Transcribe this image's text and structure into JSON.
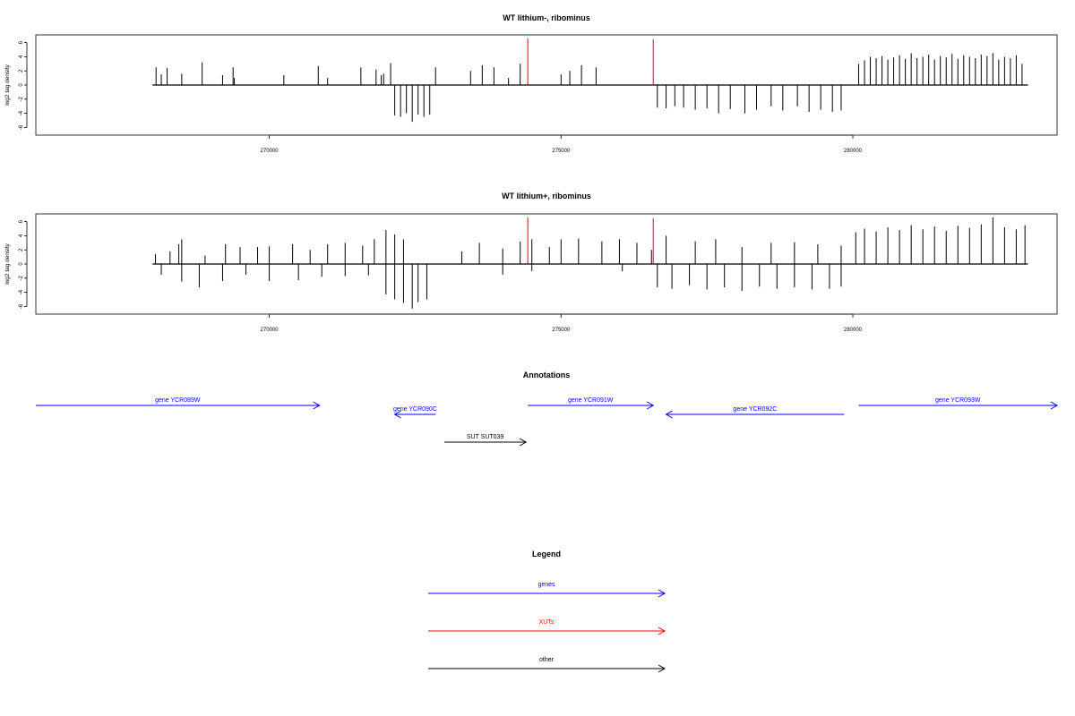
{
  "chart_data": [
    {
      "type": "bar",
      "title": "WT lithium-, ribominus",
      "ylabel": "log2 tag density",
      "xlim": [
        266000,
        283500
      ],
      "ylim": [
        -7,
        7
      ],
      "x_ticks": [
        270000,
        275000,
        280000
      ],
      "x_tick_labels": [
        "270000",
        "275000",
        "280000"
      ],
      "y_ticks": [
        -6,
        -4,
        -2,
        0,
        2,
        4,
        6
      ],
      "y_tick_labels": [
        "-6",
        "-4",
        "-2",
        "0",
        "2",
        "4",
        "6"
      ],
      "baseline": {
        "x": [
          268000,
          283000
        ],
        "y": 0
      },
      "series": [
        {
          "strand": "plus",
          "color": "#000000",
          "points": [
            [
              268060,
              2.5
            ],
            [
              268150,
              1.5
            ],
            [
              268250,
              2.4
            ],
            [
              268500,
              1.6
            ],
            [
              268850,
              3.2
            ],
            [
              269200,
              1.4
            ],
            [
              269380,
              2.5
            ],
            [
              269400,
              1.0
            ],
            [
              270250,
              1.4
            ],
            [
              270840,
              2.7
            ],
            [
              271000,
              1.0
            ],
            [
              271570,
              2.5
            ],
            [
              271830,
              2.2
            ],
            [
              271920,
              1.4
            ],
            [
              271960,
              1.6
            ],
            [
              272080,
              3.1
            ],
            [
              272850,
              2.5
            ],
            [
              273450,
              2.0
            ],
            [
              273650,
              2.8
            ],
            [
              273850,
              2.5
            ],
            [
              274100,
              1.0
            ],
            [
              274300,
              3.0
            ],
            [
              275000,
              1.5
            ],
            [
              275150,
              2.0
            ],
            [
              275350,
              2.8
            ],
            [
              275600,
              2.5
            ],
            [
              280100,
              3.0
            ],
            [
              280200,
              3.5
            ],
            [
              280300,
              4.0
            ],
            [
              280400,
              3.8
            ],
            [
              280500,
              4.1
            ],
            [
              280600,
              3.6
            ],
            [
              280700,
              3.9
            ],
            [
              280800,
              4.2
            ],
            [
              280900,
              3.7
            ],
            [
              281000,
              4.5
            ],
            [
              281100,
              3.8
            ],
            [
              281200,
              4.0
            ],
            [
              281300,
              4.3
            ],
            [
              281400,
              3.6
            ],
            [
              281500,
              4.1
            ],
            [
              281600,
              3.9
            ],
            [
              281700,
              4.4
            ],
            [
              281800,
              3.7
            ],
            [
              281900,
              4.2
            ],
            [
              282000,
              4.0
            ],
            [
              282100,
              3.8
            ],
            [
              282200,
              4.3
            ],
            [
              282300,
              4.1
            ],
            [
              282400,
              4.5
            ],
            [
              282500,
              3.6
            ],
            [
              282600,
              4.0
            ],
            [
              282700,
              3.8
            ],
            [
              282800,
              4.2
            ],
            [
              282900,
              3.0
            ]
          ]
        },
        {
          "strand": "minus",
          "color": "#000000",
          "points": [
            [
              272150,
              -4.3
            ],
            [
              272250,
              -4.5
            ],
            [
              272350,
              -4.0
            ],
            [
              272450,
              -5.2
            ],
            [
              272550,
              -4.2
            ],
            [
              272650,
              -4.5
            ],
            [
              272750,
              -4.2
            ],
            [
              276650,
              -3.2
            ],
            [
              276800,
              -3.3
            ],
            [
              276950,
              -3.0
            ],
            [
              277100,
              -3.2
            ],
            [
              277300,
              -3.5
            ],
            [
              277500,
              -3.3
            ],
            [
              277700,
              -4.0
            ],
            [
              277900,
              -3.4
            ],
            [
              278150,
              -4.0
            ],
            [
              278350,
              -3.5
            ],
            [
              278600,
              -3.0
            ],
            [
              278800,
              -3.6
            ],
            [
              279050,
              -3.0
            ],
            [
              279250,
              -3.8
            ],
            [
              279450,
              -3.5
            ],
            [
              279650,
              -3.8
            ],
            [
              279800,
              -3.6
            ]
          ]
        },
        {
          "strand": "xut",
          "color": "#ff0000",
          "points": [
            [
              274430,
              6.6
            ],
            [
              276580,
              6.5
            ]
          ]
        }
      ]
    },
    {
      "type": "bar",
      "title": "WT lithium+, ribominus",
      "ylabel": "log2 tag density",
      "xlim": [
        266000,
        283500
      ],
      "ylim": [
        -7,
        7
      ],
      "x_ticks": [
        270000,
        275000,
        280000
      ],
      "x_tick_labels": [
        "270000",
        "275000",
        "280000"
      ],
      "y_ticks": [
        -6,
        -4,
        -2,
        0,
        2,
        4,
        6
      ],
      "y_tick_labels": [
        "-6",
        "-4",
        "-2",
        "0",
        "2",
        "4",
        "6"
      ],
      "baseline": {
        "x": [
          268000,
          283000
        ],
        "y": 0
      },
      "series": [
        {
          "strand": "plus",
          "color": "#000000",
          "points": [
            [
              268050,
              1.4
            ],
            [
              268300,
              1.8
            ],
            [
              268450,
              2.8
            ],
            [
              268500,
              3.5
            ],
            [
              268900,
              1.2
            ],
            [
              269250,
              2.8
            ],
            [
              269500,
              2.4
            ],
            [
              269800,
              2.4
            ],
            [
              270000,
              2.5
            ],
            [
              270400,
              2.8
            ],
            [
              270700,
              2.0
            ],
            [
              271000,
              2.8
            ],
            [
              271300,
              3.0
            ],
            [
              271600,
              2.6
            ],
            [
              271800,
              3.5
            ],
            [
              272000,
              4.8
            ],
            [
              272150,
              4.2
            ],
            [
              272300,
              3.5
            ],
            [
              273300,
              1.8
            ],
            [
              273600,
              3.0
            ],
            [
              274000,
              2.2
            ],
            [
              274300,
              3.2
            ],
            [
              274500,
              3.5
            ],
            [
              274800,
              2.4
            ],
            [
              275000,
              3.5
            ],
            [
              275300,
              3.6
            ],
            [
              275700,
              3.2
            ],
            [
              276000,
              3.5
            ],
            [
              276300,
              3.0
            ],
            [
              276550,
              2.0
            ],
            [
              276800,
              4.0
            ],
            [
              277300,
              3.2
            ],
            [
              277650,
              3.5
            ],
            [
              278100,
              2.4
            ],
            [
              278600,
              3.0
            ],
            [
              279000,
              3.1
            ],
            [
              279400,
              2.8
            ],
            [
              279800,
              2.6
            ],
            [
              280050,
              4.5
            ],
            [
              280200,
              5.0
            ],
            [
              280400,
              4.6
            ],
            [
              280600,
              5.2
            ],
            [
              280800,
              4.8
            ],
            [
              281000,
              5.5
            ],
            [
              281200,
              4.9
            ],
            [
              281400,
              5.3
            ],
            [
              281600,
              4.7
            ],
            [
              281800,
              5.4
            ],
            [
              282000,
              5.1
            ],
            [
              282200,
              5.6
            ],
            [
              282400,
              6.6
            ],
            [
              282600,
              5.2
            ],
            [
              282800,
              4.9
            ],
            [
              282950,
              5.5
            ]
          ]
        },
        {
          "strand": "minus",
          "color": "#000000",
          "points": [
            [
              268150,
              -1.5
            ],
            [
              268500,
              -2.5
            ],
            [
              268800,
              -3.3
            ],
            [
              269200,
              -2.4
            ],
            [
              269600,
              -1.5
            ],
            [
              270000,
              -2.4
            ],
            [
              270500,
              -2.3
            ],
            [
              270900,
              -1.8
            ],
            [
              271300,
              -1.7
            ],
            [
              271700,
              -1.6
            ],
            [
              272000,
              -4.3
            ],
            [
              272150,
              -5.0
            ],
            [
              272300,
              -5.5
            ],
            [
              272450,
              -6.3
            ],
            [
              272550,
              -5.4
            ],
            [
              272700,
              -5.0
            ],
            [
              274000,
              -1.5
            ],
            [
              274500,
              -1.0
            ],
            [
              276050,
              -1.0
            ],
            [
              276650,
              -3.3
            ],
            [
              276900,
              -3.5
            ],
            [
              277200,
              -3.0
            ],
            [
              277500,
              -3.6
            ],
            [
              277800,
              -3.3
            ],
            [
              278100,
              -3.8
            ],
            [
              278400,
              -3.2
            ],
            [
              278700,
              -3.5
            ],
            [
              279000,
              -3.3
            ],
            [
              279300,
              -3.6
            ],
            [
              279600,
              -3.5
            ],
            [
              279800,
              -3.2
            ]
          ]
        },
        {
          "strand": "xut",
          "color": "#ff0000",
          "points": [
            [
              274430,
              6.6
            ],
            [
              276580,
              6.5
            ]
          ]
        }
      ]
    }
  ],
  "annotations": {
    "title": "Annotations",
    "features": [
      {
        "label": "gene YCR089W",
        "start": 266000,
        "end": 270860,
        "strand": "+",
        "color": "#0000ff",
        "row": 0
      },
      {
        "label": "gene YCR090C",
        "start": 272150,
        "end": 272850,
        "strand": "-",
        "color": "#0000ff",
        "row": 1
      },
      {
        "label": "gene YCR091W",
        "start": 274430,
        "end": 276580,
        "strand": "+",
        "color": "#0000ff",
        "row": 0
      },
      {
        "label": "gene YCR092C",
        "start": 276800,
        "end": 279850,
        "strand": "-",
        "color": "#0000ff",
        "row": 1
      },
      {
        "label": "gene YCR093W",
        "start": 280100,
        "end": 283500,
        "strand": "+",
        "color": "#0000ff",
        "row": 0
      },
      {
        "label": "SUT SUT039",
        "start": 273000,
        "end": 274400,
        "strand": "+",
        "color": "#000000",
        "row": 2
      }
    ]
  },
  "legend": {
    "title": "Legend",
    "items": [
      {
        "label": "genes",
        "color": "#0000ff"
      },
      {
        "label": "XUTs",
        "color": "#ff0000"
      },
      {
        "label": "other",
        "color": "#000000"
      }
    ]
  }
}
